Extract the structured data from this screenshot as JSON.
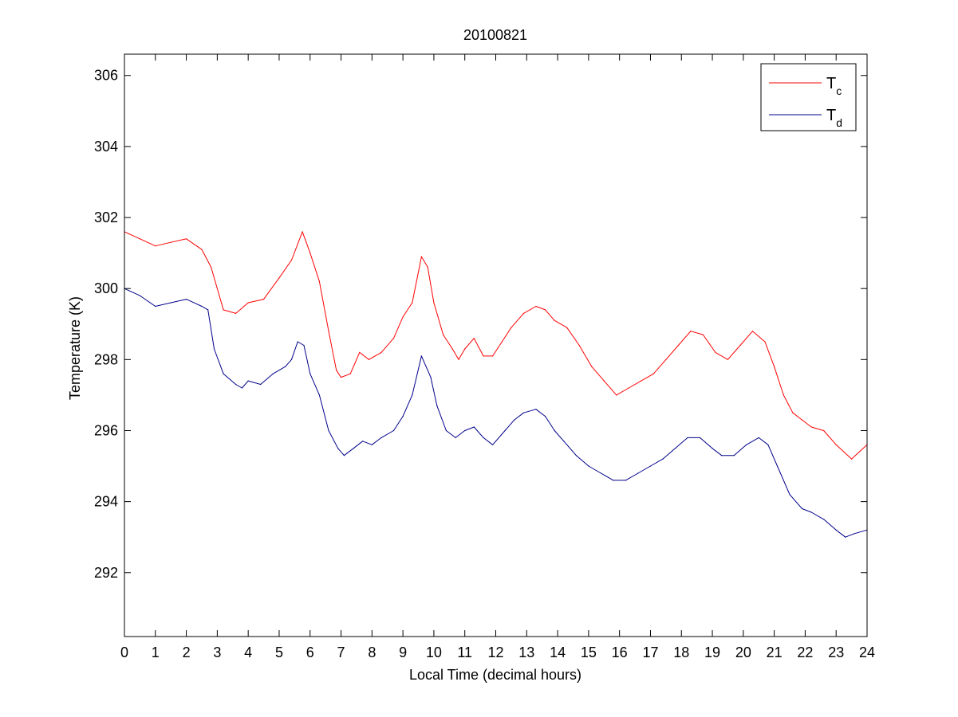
{
  "chart_data": {
    "type": "line",
    "title": "20100821",
    "xlabel": "Local Time (decimal hours)",
    "ylabel": "Temperature (K)",
    "xlim": [
      0,
      24
    ],
    "ylim": [
      290.2,
      306.6
    ],
    "xticks": [
      0,
      1,
      2,
      3,
      4,
      5,
      6,
      7,
      8,
      9,
      10,
      11,
      12,
      13,
      14,
      15,
      16,
      17,
      18,
      19,
      20,
      21,
      22,
      23,
      24
    ],
    "yticks": [
      292,
      294,
      296,
      298,
      300,
      302,
      304,
      306
    ],
    "grid": false,
    "legend_position": "top-right",
    "series": [
      {
        "name": "T_c",
        "legend_main": "T",
        "legend_sub": "c",
        "color": "#ff0000",
        "x": [
          0,
          0.5,
          1.0,
          1.5,
          2.0,
          2.5,
          2.8,
          3.2,
          3.6,
          4.0,
          4.5,
          5.0,
          5.4,
          5.75,
          6.0,
          6.3,
          6.6,
          6.85,
          7.0,
          7.3,
          7.6,
          7.9,
          8.3,
          8.7,
          9.0,
          9.3,
          9.6,
          9.8,
          10.0,
          10.3,
          10.6,
          10.8,
          11.0,
          11.3,
          11.6,
          11.9,
          12.2,
          12.5,
          12.9,
          13.3,
          13.6,
          13.9,
          14.3,
          14.7,
          15.1,
          15.5,
          15.9,
          16.3,
          16.7,
          17.1,
          17.5,
          17.9,
          18.3,
          18.7,
          19.1,
          19.5,
          19.9,
          20.3,
          20.7,
          21.0,
          21.3,
          21.6,
          21.9,
          22.2,
          22.6,
          23.0,
          23.5,
          24.0
        ],
        "y": [
          301.6,
          301.4,
          301.2,
          301.3,
          301.4,
          301.1,
          300.6,
          299.4,
          299.3,
          299.6,
          299.7,
          300.3,
          300.8,
          301.6,
          301.0,
          300.2,
          298.8,
          297.7,
          297.5,
          297.6,
          298.2,
          298.0,
          298.2,
          298.6,
          299.2,
          299.6,
          300.9,
          300.6,
          299.6,
          298.7,
          298.3,
          298.0,
          298.3,
          298.6,
          298.1,
          298.1,
          298.5,
          298.9,
          299.3,
          299.5,
          299.4,
          299.1,
          298.9,
          298.4,
          297.8,
          297.4,
          297.0,
          297.2,
          297.4,
          297.6,
          298.0,
          298.4,
          298.8,
          298.7,
          298.2,
          298.0,
          298.4,
          298.8,
          298.5,
          297.8,
          297.0,
          296.5,
          296.3,
          296.1,
          296.0,
          295.6,
          295.2,
          295.6
        ]
      },
      {
        "name": "T_d",
        "legend_main": "T",
        "legend_sub": "d",
        "color": "#00008b",
        "x": [
          0,
          0.5,
          1.0,
          1.5,
          2.0,
          2.5,
          2.7,
          2.9,
          3.2,
          3.6,
          3.8,
          4.0,
          4.4,
          4.8,
          5.2,
          5.4,
          5.6,
          5.8,
          6.0,
          6.3,
          6.6,
          6.9,
          7.1,
          7.4,
          7.7,
          8.0,
          8.3,
          8.7,
          9.0,
          9.3,
          9.6,
          9.9,
          10.1,
          10.4,
          10.7,
          11.0,
          11.3,
          11.6,
          11.9,
          12.3,
          12.6,
          12.9,
          13.3,
          13.6,
          13.9,
          14.2,
          14.6,
          15.0,
          15.4,
          15.8,
          16.2,
          16.6,
          17.0,
          17.4,
          17.8,
          18.2,
          18.6,
          19.0,
          19.3,
          19.7,
          20.1,
          20.5,
          20.8,
          21.1,
          21.5,
          21.9,
          22.2,
          22.6,
          23.0,
          23.3,
          23.6,
          24.0
        ],
        "y": [
          300.0,
          299.8,
          299.5,
          299.6,
          299.7,
          299.5,
          299.4,
          298.3,
          297.6,
          297.3,
          297.2,
          297.4,
          297.3,
          297.6,
          297.8,
          298.0,
          298.5,
          298.4,
          297.6,
          297.0,
          296.0,
          295.5,
          295.3,
          295.5,
          295.7,
          295.6,
          295.8,
          296.0,
          296.4,
          297.0,
          298.1,
          297.5,
          296.7,
          296.0,
          295.8,
          296.0,
          296.1,
          295.8,
          295.6,
          296.0,
          296.3,
          296.5,
          296.6,
          296.4,
          296.0,
          295.7,
          295.3,
          295.0,
          294.8,
          294.6,
          294.6,
          294.8,
          295.0,
          295.2,
          295.5,
          295.8,
          295.8,
          295.5,
          295.3,
          295.3,
          295.6,
          295.8,
          295.6,
          295.0,
          294.2,
          293.8,
          293.7,
          293.5,
          293.2,
          293.0,
          293.1,
          293.2
        ]
      }
    ]
  }
}
